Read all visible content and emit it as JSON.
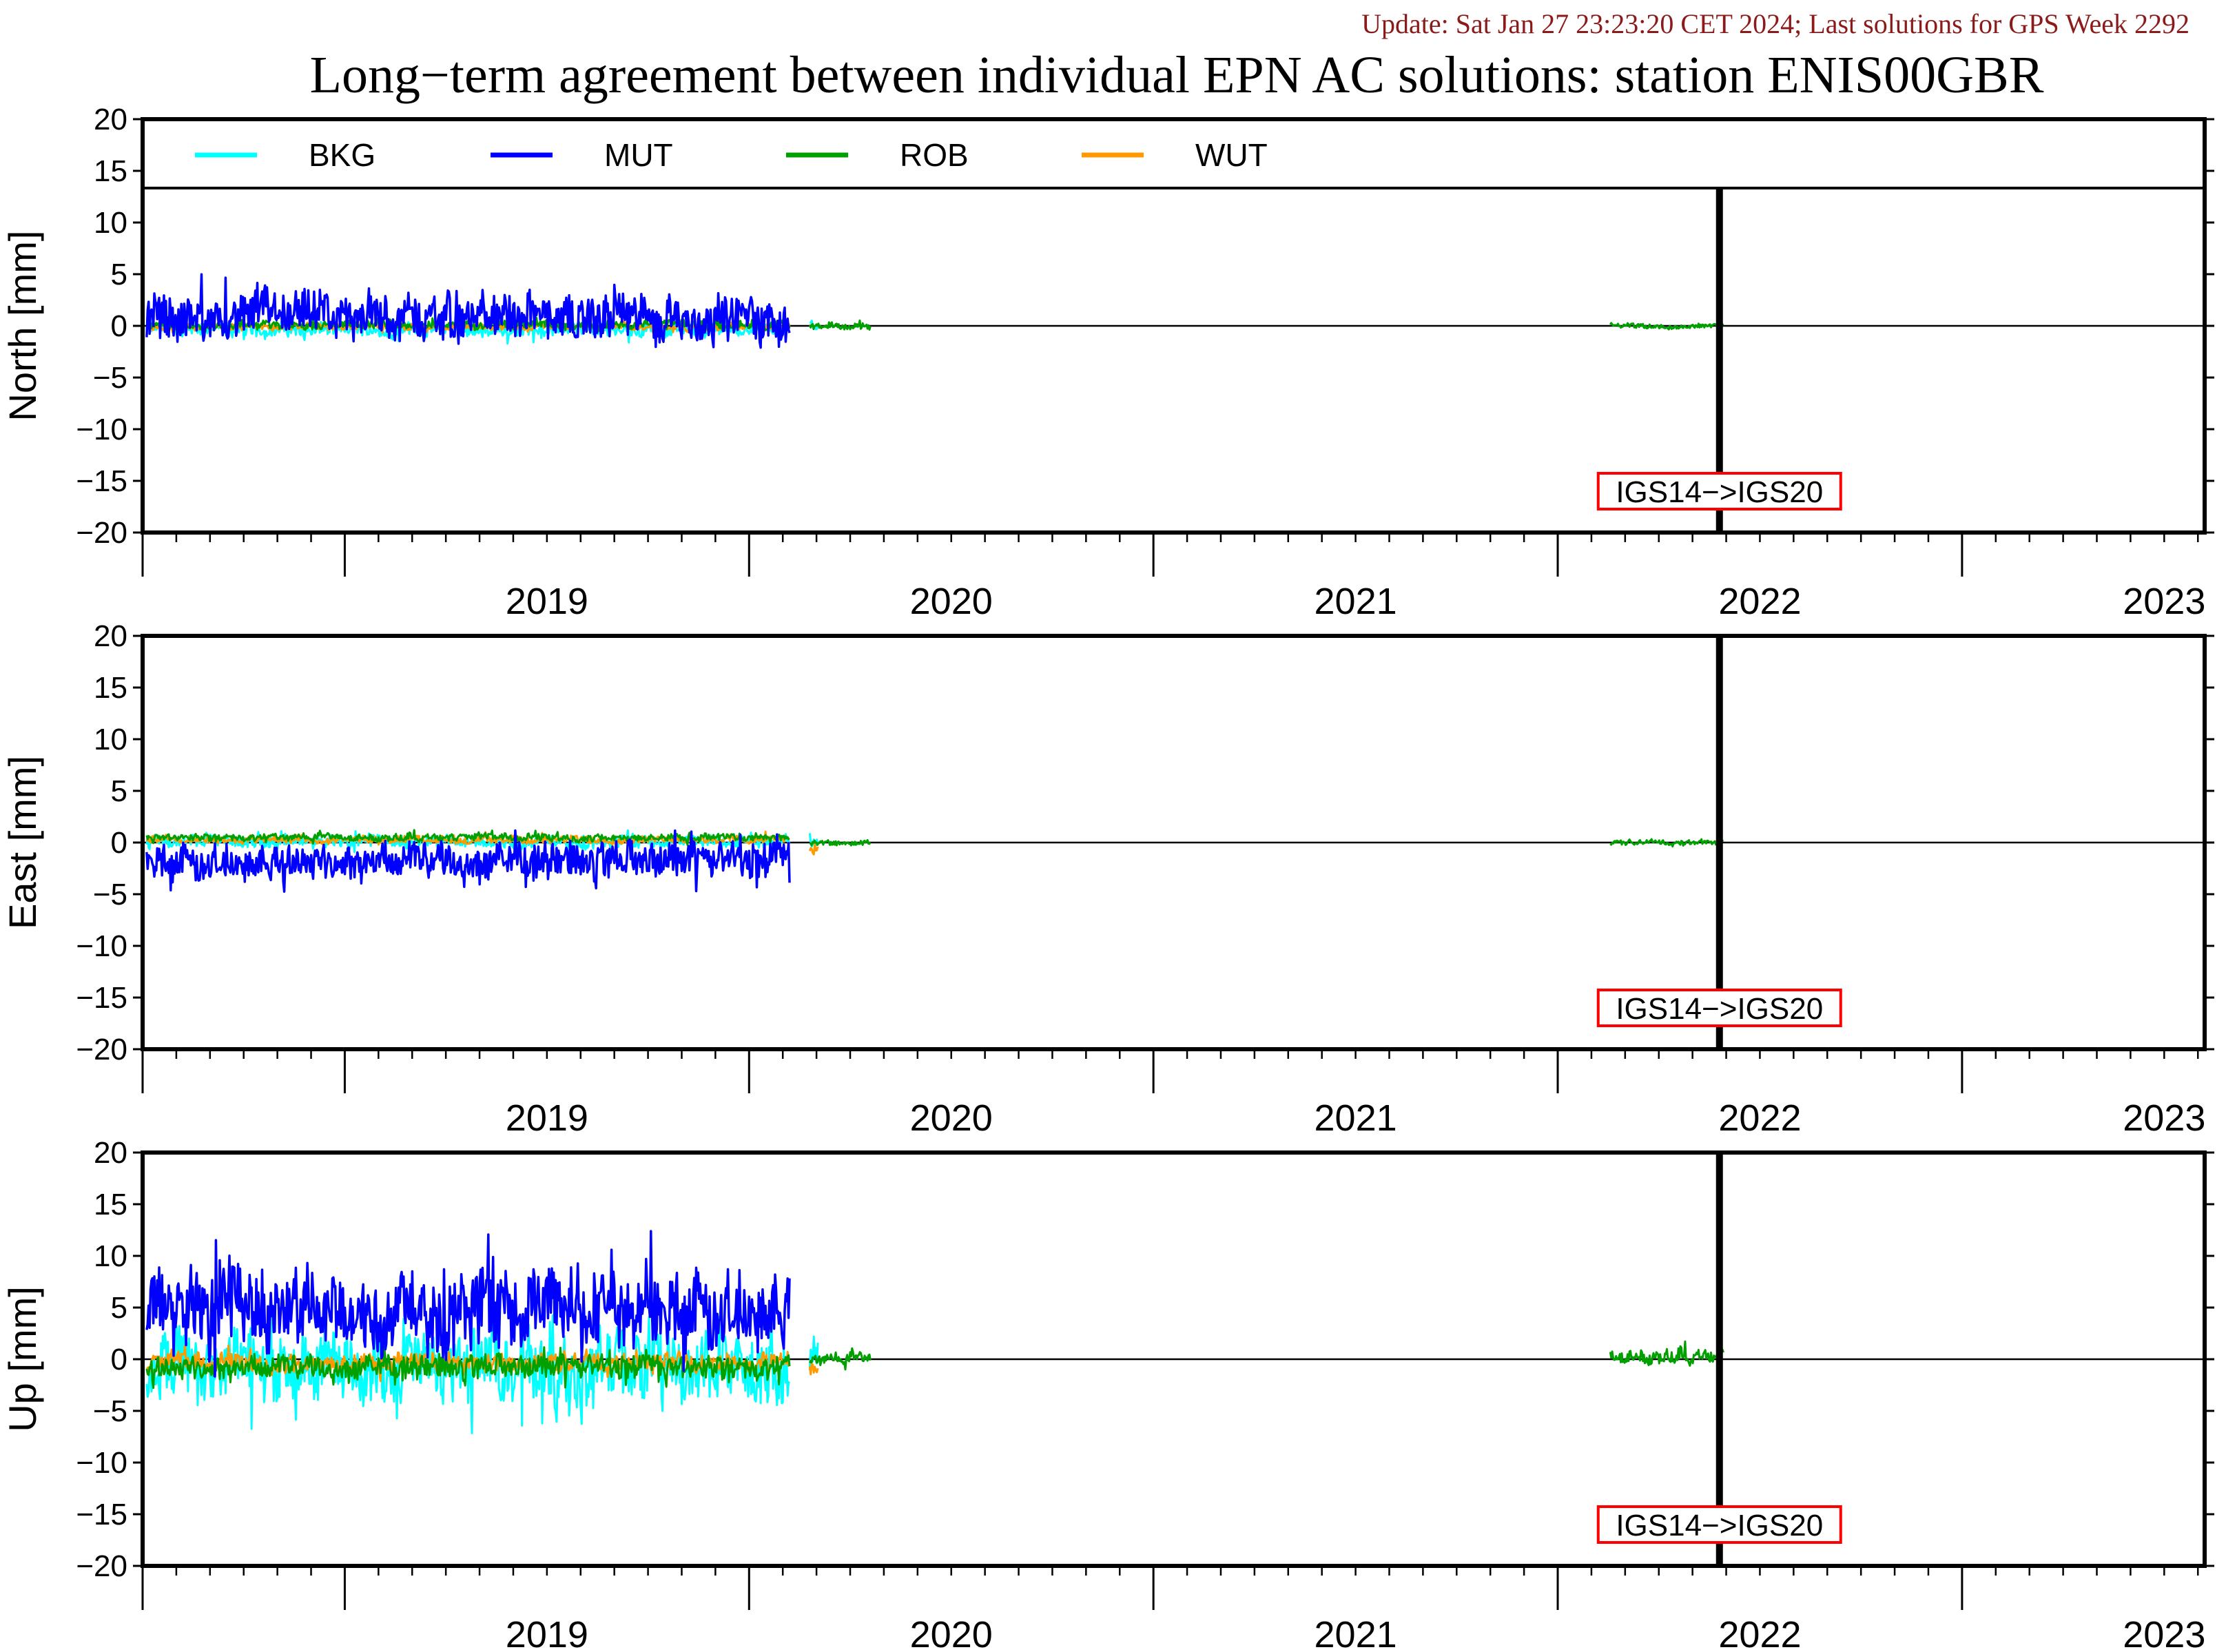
{
  "update_text": "Update: Sat Jan 27 23:23:20 CET 2024; Last solutions for GPS Week 2292",
  "title": "Long−term agreement between individual EPN AC solutions: station ENIS00GBR",
  "annotation": "IGS14−>IGS20",
  "colors": {
    "update": "#8b1a1a",
    "BKG": "#00ffff",
    "MUT": "#0000ff",
    "ROB": "#00a000",
    "WUT": "#ff9900",
    "annotation_box": "#ff0000"
  },
  "chart_data": [
    {
      "type": "line",
      "panel": "north",
      "ylabel": "North [mm]",
      "ylim": [
        -20,
        20
      ],
      "yticks": [
        20,
        15,
        10,
        5,
        0,
        -5,
        -10,
        -15,
        -20
      ],
      "xlim": [
        2018.5,
        2023.6
      ],
      "xtick_labels": [
        "2019",
        "2020",
        "2021",
        "2022",
        "2023"
      ],
      "legend": [
        "BKG",
        "MUT",
        "ROB",
        "WUT"
      ],
      "legend_position": "top",
      "reference_line_x": 2022.4,
      "series": [
        {
          "name": "BKG",
          "segments": [
            {
              "x0": 2018.51,
              "x1": 2020.1,
              "center": -0.3,
              "amp": 1.2
            },
            {
              "x0": 2020.15,
              "x1": 2020.17,
              "center": 0.0,
              "amp": 0.8
            }
          ]
        },
        {
          "name": "MUT",
          "segments": [
            {
              "x0": 2018.51,
              "x1": 2020.1,
              "center": 0.8,
              "amp": 3.5
            }
          ]
        },
        {
          "name": "ROB",
          "segments": [
            {
              "x0": 2018.51,
              "x1": 2020.1,
              "center": 0.1,
              "amp": 0.7
            },
            {
              "x0": 2020.15,
              "x1": 2020.3,
              "center": 0.0,
              "amp": 0.5
            },
            {
              "x0": 2022.13,
              "x1": 2022.41,
              "center": 0.0,
              "amp": 0.4
            }
          ]
        },
        {
          "name": "WUT",
          "segments": [
            {
              "x0": 2018.51,
              "x1": 2020.1,
              "center": -0.1,
              "amp": 0.6
            }
          ]
        }
      ]
    },
    {
      "type": "line",
      "panel": "east",
      "ylabel": "East [mm]",
      "ylim": [
        -20,
        20
      ],
      "yticks": [
        20,
        15,
        10,
        5,
        0,
        -5,
        -10,
        -15,
        -20
      ],
      "xlim": [
        2018.5,
        2023.6
      ],
      "xtick_labels": [
        "2019",
        "2020",
        "2021",
        "2022",
        "2023"
      ],
      "reference_line_x": 2022.4,
      "series": [
        {
          "name": "BKG",
          "segments": [
            {
              "x0": 2018.51,
              "x1": 2020.1,
              "center": 0.1,
              "amp": 1.0
            },
            {
              "x0": 2020.15,
              "x1": 2020.17,
              "center": 0.0,
              "amp": 0.8
            }
          ]
        },
        {
          "name": "MUT",
          "segments": [
            {
              "x0": 2018.51,
              "x1": 2020.1,
              "center": -1.8,
              "amp": 3.0
            }
          ]
        },
        {
          "name": "ROB",
          "segments": [
            {
              "x0": 2018.51,
              "x1": 2020.1,
              "center": 0.5,
              "amp": 0.6
            },
            {
              "x0": 2020.15,
              "x1": 2020.3,
              "center": 0.0,
              "amp": 0.4
            },
            {
              "x0": 2022.13,
              "x1": 2022.41,
              "center": 0.0,
              "amp": 0.4
            }
          ]
        },
        {
          "name": "WUT",
          "segments": [
            {
              "x0": 2018.51,
              "x1": 2020.1,
              "center": 0.3,
              "amp": 0.6
            },
            {
              "x0": 2020.15,
              "x1": 2020.17,
              "center": -0.5,
              "amp": 1.0
            }
          ]
        }
      ]
    },
    {
      "type": "line",
      "panel": "up",
      "ylabel": "Up [mm]",
      "ylim": [
        -20,
        20
      ],
      "yticks": [
        20,
        15,
        10,
        5,
        0,
        -5,
        -10,
        -15,
        -20
      ],
      "xlim": [
        2018.5,
        2023.6
      ],
      "xtick_labels": [
        "2019",
        "2020",
        "2021",
        "2022",
        "2023"
      ],
      "reference_line_x": 2022.4,
      "series": [
        {
          "name": "BKG",
          "segments": [
            {
              "x0": 2018.51,
              "x1": 2020.1,
              "center": -1.0,
              "amp": 6.0
            },
            {
              "x0": 2020.15,
              "x1": 2020.17,
              "center": 0.0,
              "amp": 2.0
            }
          ]
        },
        {
          "name": "MUT",
          "segments": [
            {
              "x0": 2018.51,
              "x1": 2020.1,
              "center": 5.0,
              "amp": 6.5
            }
          ]
        },
        {
          "name": "ROB",
          "segments": [
            {
              "x0": 2018.51,
              "x1": 2020.1,
              "center": -0.8,
              "amp": 2.0
            },
            {
              "x0": 2020.15,
              "x1": 2020.3,
              "center": 0.0,
              "amp": 1.0
            },
            {
              "x0": 2022.13,
              "x1": 2022.41,
              "center": 0.3,
              "amp": 1.2
            }
          ]
        },
        {
          "name": "WUT",
          "segments": [
            {
              "x0": 2018.51,
              "x1": 2020.1,
              "center": -0.3,
              "amp": 1.5
            },
            {
              "x0": 2020.15,
              "x1": 2020.17,
              "center": -1.0,
              "amp": 1.5
            }
          ]
        }
      ]
    }
  ]
}
